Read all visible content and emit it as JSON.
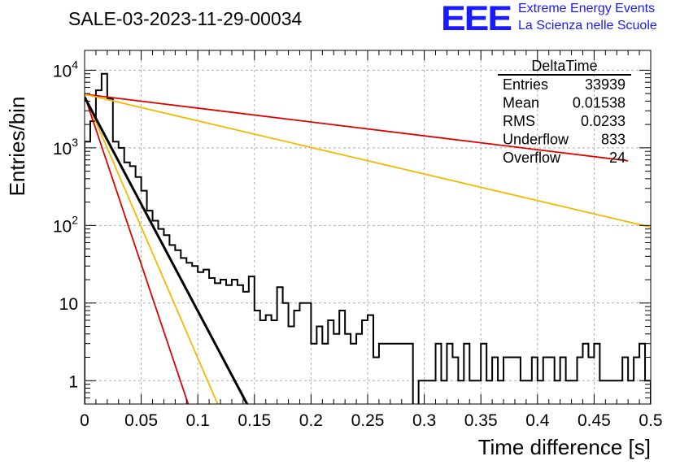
{
  "header": {
    "title": "SALE-03-2023-11-29-00034",
    "logo_text": "EEE",
    "logo_line1": "Extreme Energy Events",
    "logo_line2": "La Scienza nelle Scuole"
  },
  "stats_box": {
    "name": "DeltaTime",
    "rows": [
      {
        "label": "Entries",
        "value": "33939"
      },
      {
        "label": "Mean",
        "value": "0.01538"
      },
      {
        "label": "RMS",
        "value": "0.0233"
      },
      {
        "label": "Underflow",
        "value": "833"
      },
      {
        "label": "Overflow",
        "value": "24"
      }
    ]
  },
  "chart_data": {
    "type": "histogram",
    "title": "SALE-03-2023-11-29-00034",
    "xlabel": "Time difference [s]",
    "ylabel": "Entries/bin",
    "xlim": [
      0,
      0.5
    ],
    "ylim": [
      0.5,
      18000
    ],
    "yscale": "log",
    "grid": true,
    "xticks": [
      0,
      0.05,
      0.1,
      0.15,
      0.2,
      0.25,
      0.3,
      0.35,
      0.4,
      0.45,
      0.5
    ],
    "xtick_labels": [
      "0",
      "0.05",
      "0.1",
      "0.15",
      "0.2",
      "0.25",
      "0.3",
      "0.35",
      "0.4",
      "0.45",
      "0.5"
    ],
    "yticks": [
      1,
      10,
      100,
      1000,
      10000
    ],
    "ytick_labels": [
      {
        "base": "1",
        "exp": ""
      },
      {
        "base": "10",
        "exp": ""
      },
      {
        "base": "10",
        "exp": "2"
      },
      {
        "base": "10",
        "exp": "3"
      },
      {
        "base": "10",
        "exp": "4"
      }
    ],
    "bin_width": 0.005,
    "counts": [
      1200,
      2200,
      5500,
      9000,
      4300,
      1200,
      1000,
      650,
      580,
      420,
      280,
      155,
      115,
      90,
      75,
      56,
      48,
      38,
      33,
      30,
      25,
      27,
      21,
      18,
      20,
      17,
      20,
      17,
      14,
      22,
      8,
      6,
      7,
      6,
      16,
      10,
      5,
      8,
      10,
      10,
      3,
      5,
      3,
      6,
      4,
      8,
      4,
      3,
      4,
      6,
      7,
      2,
      3,
      3,
      3,
      3,
      3,
      3,
      0,
      1,
      1,
      1,
      3,
      1,
      3,
      2,
      1,
      3,
      1,
      1,
      3,
      1,
      2,
      1,
      2,
      2,
      2,
      1,
      1,
      2,
      1,
      2,
      2,
      1,
      2,
      1,
      1,
      2,
      3,
      2,
      3,
      1,
      1,
      1,
      1,
      2,
      1,
      2,
      3,
      1
    ],
    "fit_lines": [
      {
        "color": "#e00000",
        "width": 1.8,
        "points": [
          [
            0,
            4900
          ],
          [
            0.48,
            680
          ]
        ]
      },
      {
        "color": "#f5b800",
        "width": 1.8,
        "points": [
          [
            0,
            4900
          ],
          [
            0.5,
            95
          ]
        ]
      },
      {
        "color": "#e00000",
        "width": 1.8,
        "points": [
          [
            0,
            4700
          ],
          [
            0.0915,
            0.5
          ]
        ]
      },
      {
        "color": "#f5b800",
        "width": 1.8,
        "points": [
          [
            0,
            4700
          ],
          [
            0.1175,
            0.5
          ]
        ]
      },
      {
        "color": "#000000",
        "width": 3,
        "points": [
          [
            0,
            4500
          ],
          [
            0.1435,
            0.5
          ]
        ]
      }
    ]
  }
}
